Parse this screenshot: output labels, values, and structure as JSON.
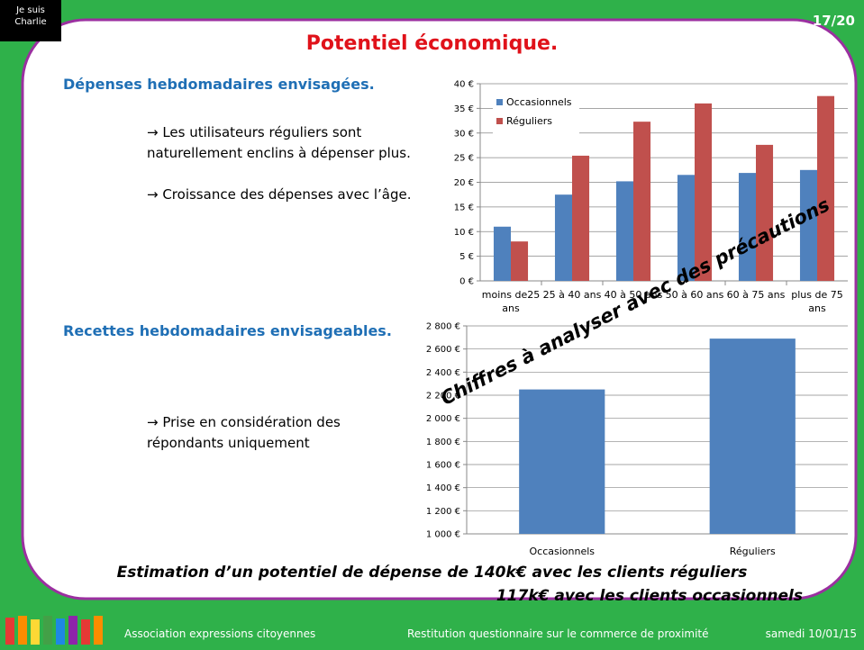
{
  "badge": [
    "Je suis",
    "Charlie"
  ],
  "page_number": "17/20",
  "title": "Potentiel économique.",
  "section1": {
    "heading": "Dépenses hebdomadaires envisagées.",
    "bullets": [
      "→ Les utilisateurs réguliers sont naturellement enclins à dépenser plus.",
      "→ Croissance des dépenses avec l’âge."
    ]
  },
  "section2": {
    "heading": "Recettes hebdomadaires envisageables.",
    "bullets": [
      "→ Prise en considération des répondants uniquement"
    ]
  },
  "watermark": "Chiffres à analyser avec des précautions",
  "conclusion": [
    "Estimation d’un potentiel de dépense de 140k€ avec les clients réguliers",
    "117k€ avec les clients occasionnels"
  ],
  "footer": {
    "association": "Association expressions citoyennes",
    "subject": "Restitution questionnaire sur le commerce de proximité",
    "date": "samedi 10/01/15"
  },
  "chart_data": [
    {
      "type": "bar",
      "categories": [
        "moins de25 ans",
        "25 à 40 ans",
        "40 à 50 ans",
        "50 à 60 ans",
        "60 à 75 ans",
        "plus de 75 ans"
      ],
      "series": [
        {
          "name": "Occasionnels",
          "color": "#4f81bd",
          "values": [
            11,
            17.5,
            20.2,
            21.5,
            21.9,
            22.5
          ]
        },
        {
          "name": "Réguliers",
          "color": "#c0504d",
          "values": [
            8,
            25.4,
            32.3,
            36,
            27.6,
            37.5
          ]
        }
      ],
      "ylim": [
        0,
        40
      ],
      "yticks": [
        {
          "value": 0,
          "label": "0 €"
        },
        {
          "value": 5,
          "label": "5 €"
        },
        {
          "value": 10,
          "label": "10 €"
        },
        {
          "value": 15,
          "label": "15 €"
        },
        {
          "value": 20,
          "label": "20 €"
        },
        {
          "value": 25,
          "label": "25 €"
        },
        {
          "value": 30,
          "label": "30 €"
        },
        {
          "value": 35,
          "label": "35 €"
        },
        {
          "value": 40,
          "label": "40 €"
        }
      ],
      "grid": true,
      "legend": "top-left"
    },
    {
      "type": "bar",
      "categories": [
        "Occasionnels",
        "Réguliers"
      ],
      "values": [
        2250,
        2690
      ],
      "color": "#4f81bd",
      "ylim": [
        1000,
        2800
      ],
      "yticks": [
        {
          "value": 1000,
          "label": "1 000 €"
        },
        {
          "value": 1200,
          "label": "1 200 €"
        },
        {
          "value": 1400,
          "label": "1 400 €"
        },
        {
          "value": 1600,
          "label": "1 600 €"
        },
        {
          "value": 1800,
          "label": "1 800 €"
        },
        {
          "value": 2000,
          "label": "2 000 €"
        },
        {
          "value": 2200,
          "label": "2 200 €"
        },
        {
          "value": 2400,
          "label": "2 400 €"
        },
        {
          "value": 2600,
          "label": "2 600 €"
        },
        {
          "value": 2800,
          "label": "2 800 €"
        }
      ],
      "grid": true
    }
  ]
}
